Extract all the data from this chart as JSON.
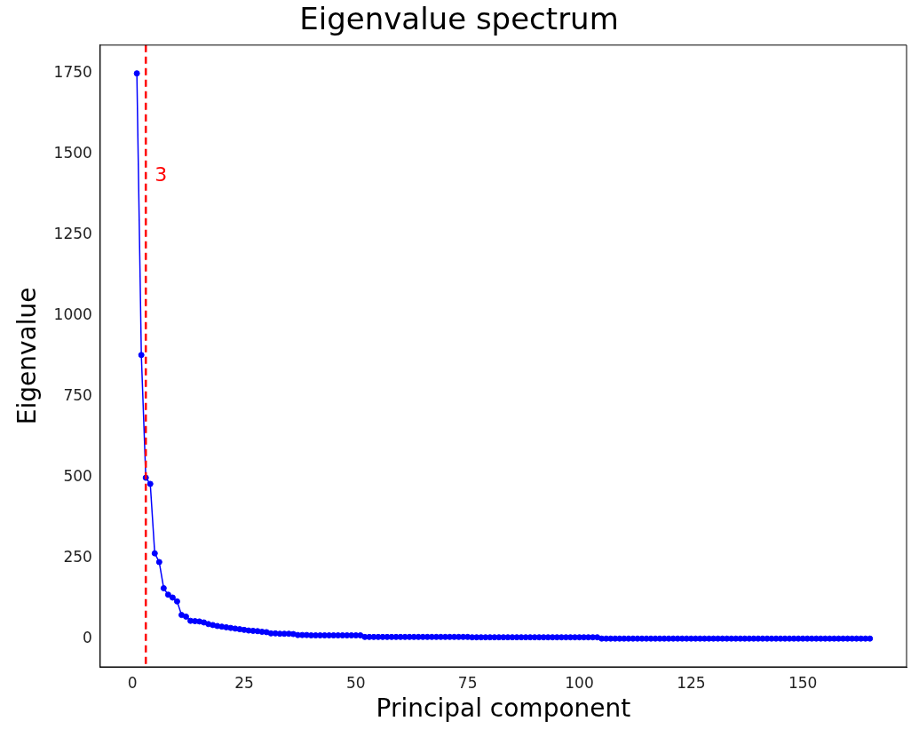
{
  "chart_data": {
    "type": "line",
    "title": "Eigenvalue spectrum",
    "xlabel": "Principal component",
    "ylabel": "Eigenvalue",
    "x": [
      1,
      2,
      3,
      4,
      5,
      6,
      7,
      8,
      9,
      10,
      11,
      12,
      13,
      14,
      15,
      16,
      17,
      18,
      19,
      20,
      21,
      22,
      23,
      24,
      25,
      26,
      27,
      28,
      29,
      30,
      31,
      32,
      33,
      34,
      35,
      36,
      37,
      38,
      39,
      40,
      41,
      42,
      43,
      44,
      45,
      46,
      47,
      48,
      49,
      50,
      51,
      52,
      53,
      54,
      55,
      56,
      57,
      58,
      59,
      60,
      61,
      62,
      63,
      64,
      65,
      66,
      67,
      68,
      69,
      70,
      71,
      72,
      73,
      74,
      75,
      76,
      77,
      78,
      79,
      80,
      81,
      82,
      83,
      84,
      85,
      86,
      87,
      88,
      89,
      90,
      91,
      92,
      93,
      94,
      95,
      96,
      97,
      98,
      99,
      100,
      101,
      102,
      103,
      104,
      105,
      106,
      107,
      108,
      109,
      110,
      111,
      112,
      113,
      114,
      115,
      116,
      117,
      118,
      119,
      120,
      121,
      122,
      123,
      124,
      125,
      126,
      127,
      128,
      129,
      130,
      131,
      132,
      133,
      134,
      135,
      136,
      137,
      138,
      139,
      140,
      141,
      142,
      143,
      144,
      145,
      146,
      147,
      148,
      149,
      150,
      151,
      152,
      153,
      154,
      155,
      156,
      157,
      158,
      159,
      160,
      161,
      162,
      163,
      164,
      165
    ],
    "series": [
      {
        "color": "#0000ff",
        "values": [
          1750,
          878,
          498,
          479,
          264,
          237,
          156,
          136,
          127,
          115,
          73,
          68,
          55,
          54,
          53,
          50,
          45,
          42,
          39,
          37,
          35,
          33,
          31,
          29,
          27,
          25,
          24,
          23,
          21,
          20,
          16,
          16,
          15,
          15,
          15,
          14,
          11,
          11,
          11,
          10,
          10,
          10,
          10,
          10,
          10,
          10,
          10,
          10,
          10,
          10,
          10,
          5,
          5,
          5,
          5,
          5,
          5,
          5,
          5,
          5,
          5,
          5,
          5,
          5,
          5,
          5,
          5,
          5,
          5,
          5,
          5,
          5,
          5,
          5,
          5,
          4,
          4,
          4,
          4,
          4,
          4,
          4,
          4,
          4,
          4,
          4,
          4,
          4,
          4,
          4,
          4,
          4,
          4,
          4,
          4,
          4,
          4,
          4,
          4,
          4,
          4,
          4,
          4,
          4,
          0,
          0,
          0,
          0,
          0,
          0,
          0,
          0,
          0,
          0,
          0,
          0,
          0,
          0,
          0,
          0,
          0,
          0,
          0,
          0,
          0,
          0,
          0,
          0,
          0,
          0,
          0,
          0,
          0,
          0,
          0,
          0,
          0,
          0,
          0,
          0,
          0,
          0,
          0,
          0,
          0,
          0,
          0,
          0,
          0,
          0,
          0,
          0,
          0,
          0,
          0,
          0,
          0,
          0,
          0,
          0,
          0,
          0,
          0,
          0,
          0
        ]
      }
    ],
    "xlim": [
      -7.2,
      173.2
    ],
    "ylim": [
      -87.5,
      1837.5
    ],
    "xticks": [
      0,
      25,
      50,
      75,
      100,
      125,
      150
    ],
    "yticks": [
      0,
      250,
      500,
      750,
      1000,
      1250,
      1500,
      1750
    ],
    "ref_lines": [
      {
        "axis": "x",
        "value": 3,
        "label": "3",
        "color": "#ff0000",
        "line_style": "dashed"
      }
    ],
    "marker": "circle",
    "line_style": "solid",
    "grid": false,
    "legend": false
  }
}
